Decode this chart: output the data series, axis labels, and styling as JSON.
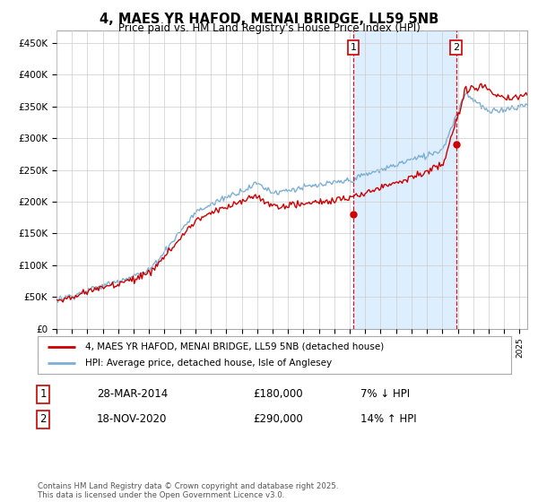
{
  "title": "4, MAES YR HAFOD, MENAI BRIDGE, LL59 5NB",
  "subtitle": "Price paid vs. HM Land Registry's House Price Index (HPI)",
  "ylim": [
    0,
    470000
  ],
  "yticks": [
    0,
    50000,
    100000,
    150000,
    200000,
    250000,
    300000,
    350000,
    400000,
    450000
  ],
  "ytick_labels": [
    "£0",
    "£50K",
    "£100K",
    "£150K",
    "£200K",
    "£250K",
    "£300K",
    "£350K",
    "£400K",
    "£450K"
  ],
  "hpi_color": "#7bafd4",
  "price_color": "#cc0000",
  "vline_color": "#cc0000",
  "shade_color": "#ddeeff",
  "marker1_date": 2014.23,
  "marker1_price": 180000,
  "marker2_date": 2020.89,
  "marker2_price": 290000,
  "legend_price_label": "4, MAES YR HAFOD, MENAI BRIDGE, LL59 5NB (detached house)",
  "legend_hpi_label": "HPI: Average price, detached house, Isle of Anglesey",
  "table_row1": [
    "1",
    "28-MAR-2014",
    "£180,000",
    "7% ↓ HPI"
  ],
  "table_row2": [
    "2",
    "18-NOV-2020",
    "£290,000",
    "14% ↑ HPI"
  ],
  "footer": "Contains HM Land Registry data © Crown copyright and database right 2025.\nThis data is licensed under the Open Government Licence v3.0.",
  "background_color": "#ffffff",
  "grid_color": "#cccccc",
  "xlim_start": 1995,
  "xlim_end": 2025.5
}
